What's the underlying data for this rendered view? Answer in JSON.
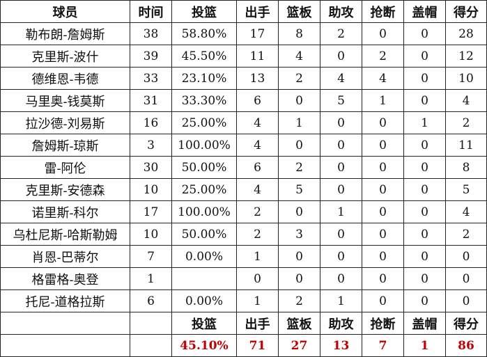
{
  "headers": [
    "球员",
    "时间",
    "投篮",
    "出手",
    "篮板",
    "助攻",
    "抢断",
    "盖帽",
    "得分"
  ],
  "rows": [
    [
      "勒布朗-詹姆斯",
      "38",
      "58.80%",
      "17",
      "8",
      "2",
      "0",
      "0",
      "28"
    ],
    [
      "克里斯-波什",
      "39",
      "45.50%",
      "11",
      "4",
      "0",
      "2",
      "0",
      "12"
    ],
    [
      "德维恩-韦德",
      "33",
      "23.10%",
      "13",
      "2",
      "4",
      "4",
      "0",
      "10"
    ],
    [
      "马里奥-钱莫斯",
      "31",
      "33.30%",
      "6",
      "0",
      "5",
      "1",
      "0",
      "4"
    ],
    [
      "拉沙德-刘易斯",
      "16",
      "25.00%",
      "4",
      "1",
      "0",
      "0",
      "1",
      "2"
    ],
    [
      "詹姆斯-琼斯",
      "3",
      "100.00%",
      "4",
      "0",
      "0",
      "0",
      "0",
      "11"
    ],
    [
      "雷-阿伦",
      "30",
      "50.00%",
      "6",
      "2",
      "0",
      "0",
      "0",
      "8"
    ],
    [
      "克里斯-安德森",
      "10",
      "25.00%",
      "4",
      "5",
      "0",
      "0",
      "0",
      "5"
    ],
    [
      "诺里斯-科尔",
      "17",
      "100.00%",
      "2",
      "0",
      "1",
      "0",
      "0",
      "4"
    ],
    [
      "乌杜尼斯-哈斯勒姆",
      "10",
      "50.00%",
      "2",
      "3",
      "0",
      "0",
      "0",
      "2"
    ],
    [
      "肖恩-巴蒂尔",
      "7",
      "0.00%",
      "1",
      "0",
      "0",
      "0",
      "0",
      "0"
    ],
    [
      "格雷格-奥登",
      "1",
      "",
      "0",
      "0",
      "0",
      "0",
      "0",
      "0"
    ],
    [
      "托尼-道格拉斯",
      "6",
      "0.00%",
      "1",
      "2",
      "1",
      "0",
      "0",
      "0"
    ]
  ],
  "totals_headers": [
    "投篮",
    "出手",
    "篮板",
    "助攻",
    "抢断",
    "盖帽",
    "得分"
  ],
  "totals": [
    "45.10%",
    "71",
    "27",
    "13",
    "7",
    "1",
    "86"
  ],
  "colors": {
    "totals_text": "#c00000",
    "border": "#222222"
  }
}
